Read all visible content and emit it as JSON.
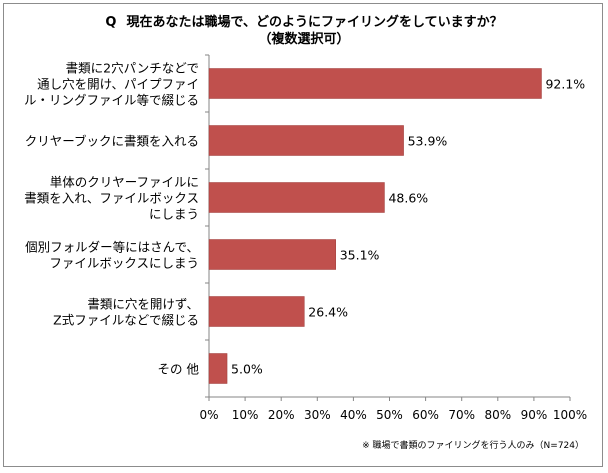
{
  "title": {
    "q_label": "Q",
    "question": "現在あなたは職場で、どのようにファイリングをしていますか？",
    "subtitle": "（複数選択可）"
  },
  "footnote": "※ 職場で書類のファイリングを行う人のみ（N=724）",
  "colors": {
    "bar": "#c0504d",
    "bar_edge": "#9c3b39",
    "axis": "#868686"
  },
  "chart_data": {
    "type": "bar",
    "orientation": "horizontal",
    "categories": [
      [
        "書類に2穴パンチなどで",
        "通し穴を開け、パイプファイ",
        "ル・リングファイル等で綴じる"
      ],
      [
        "クリヤーブックに書類を入れる"
      ],
      [
        "単体のクリヤーファイルに",
        "書類を入れ、ファイルボックス",
        "にしまう"
      ],
      [
        "個別フォルダー等にはさんで、",
        "ファイルボックスにしまう"
      ],
      [
        "書類に穴を開けず、",
        "Z式ファイルなどで綴じる"
      ],
      [
        "その 他"
      ]
    ],
    "values": [
      92.1,
      53.9,
      48.6,
      35.1,
      26.4,
      5.0
    ],
    "value_labels": [
      "92.1%",
      "53.9%",
      "48.6%",
      "35.1%",
      "26.4%",
      "5.0%"
    ],
    "xlim": [
      0,
      100
    ],
    "xticks": [
      "0%",
      "10%",
      "20%",
      "30%",
      "40%",
      "50%",
      "60%",
      "70%",
      "80%",
      "90%",
      "100%"
    ],
    "grid": false,
    "legend": "none"
  }
}
